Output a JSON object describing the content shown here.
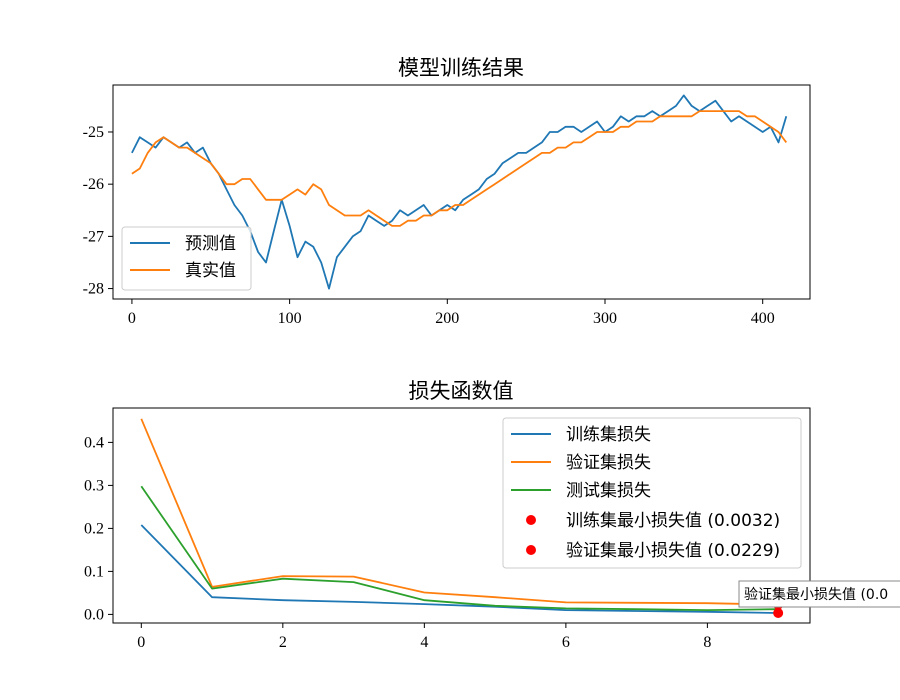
{
  "chart_data": [
    {
      "type": "line",
      "title": "模型训练结果",
      "xlabel": "",
      "ylabel": "",
      "xlim": [
        -12,
        430
      ],
      "ylim": [
        -28.2,
        -24.1
      ],
      "xticks": [
        0,
        100,
        200,
        300,
        400
      ],
      "yticks": [
        -25,
        -26,
        -27,
        -28
      ],
      "legend_position": "lower-left",
      "series": [
        {
          "name": "预测值",
          "color": "#1f77b4",
          "x": [
            0,
            5,
            10,
            15,
            20,
            25,
            30,
            35,
            40,
            45,
            50,
            55,
            60,
            65,
            70,
            75,
            80,
            85,
            90,
            95,
            100,
            105,
            110,
            115,
            120,
            125,
            130,
            135,
            140,
            145,
            150,
            155,
            160,
            165,
            170,
            175,
            180,
            185,
            190,
            195,
            200,
            205,
            210,
            215,
            220,
            225,
            230,
            235,
            240,
            245,
            250,
            255,
            260,
            265,
            270,
            275,
            280,
            285,
            290,
            295,
            300,
            305,
            310,
            315,
            320,
            325,
            330,
            335,
            340,
            345,
            350,
            355,
            360,
            365,
            370,
            375,
            380,
            385,
            390,
            395,
            400,
            405,
            410,
            415
          ],
          "values": [
            -25.4,
            -25.1,
            -25.2,
            -25.3,
            -25.1,
            -25.2,
            -25.3,
            -25.2,
            -25.4,
            -25.3,
            -25.6,
            -25.8,
            -26.1,
            -26.4,
            -26.6,
            -26.9,
            -27.3,
            -27.5,
            -26.9,
            -26.3,
            -26.8,
            -27.4,
            -27.1,
            -27.2,
            -27.5,
            -28.0,
            -27.4,
            -27.2,
            -27.0,
            -26.9,
            -26.6,
            -26.7,
            -26.8,
            -26.7,
            -26.5,
            -26.6,
            -26.5,
            -26.4,
            -26.6,
            -26.5,
            -26.4,
            -26.5,
            -26.3,
            -26.2,
            -26.1,
            -25.9,
            -25.8,
            -25.6,
            -25.5,
            -25.4,
            -25.4,
            -25.3,
            -25.2,
            -25.0,
            -25.0,
            -24.9,
            -24.9,
            -25.0,
            -24.9,
            -24.8,
            -25.0,
            -24.9,
            -24.7,
            -24.8,
            -24.7,
            -24.7,
            -24.6,
            -24.7,
            -24.6,
            -24.5,
            -24.3,
            -24.5,
            -24.6,
            -24.5,
            -24.4,
            -24.6,
            -24.8,
            -24.7,
            -24.8,
            -24.9,
            -25.0,
            -24.9,
            -25.2,
            -24.7
          ]
        },
        {
          "name": "真实值",
          "color": "#ff7f0e",
          "x": [
            0,
            5,
            10,
            15,
            20,
            25,
            30,
            35,
            40,
            45,
            50,
            55,
            60,
            65,
            70,
            75,
            80,
            85,
            90,
            95,
            100,
            105,
            110,
            115,
            120,
            125,
            130,
            135,
            140,
            145,
            150,
            155,
            160,
            165,
            170,
            175,
            180,
            185,
            190,
            195,
            200,
            205,
            210,
            215,
            220,
            225,
            230,
            235,
            240,
            245,
            250,
            255,
            260,
            265,
            270,
            275,
            280,
            285,
            290,
            295,
            300,
            305,
            310,
            315,
            320,
            325,
            330,
            335,
            340,
            345,
            350,
            355,
            360,
            365,
            370,
            375,
            380,
            385,
            390,
            395,
            400,
            405,
            410,
            415
          ],
          "values": [
            -25.8,
            -25.7,
            -25.4,
            -25.2,
            -25.1,
            -25.2,
            -25.3,
            -25.3,
            -25.4,
            -25.5,
            -25.6,
            -25.8,
            -26.0,
            -26.0,
            -25.9,
            -25.9,
            -26.1,
            -26.3,
            -26.3,
            -26.3,
            -26.2,
            -26.1,
            -26.2,
            -26.0,
            -26.1,
            -26.4,
            -26.5,
            -26.6,
            -26.6,
            -26.6,
            -26.5,
            -26.6,
            -26.7,
            -26.8,
            -26.8,
            -26.7,
            -26.7,
            -26.6,
            -26.6,
            -26.5,
            -26.5,
            -26.4,
            -26.4,
            -26.3,
            -26.2,
            -26.1,
            -26.0,
            -25.9,
            -25.8,
            -25.7,
            -25.6,
            -25.5,
            -25.4,
            -25.4,
            -25.3,
            -25.3,
            -25.2,
            -25.2,
            -25.1,
            -25.0,
            -25.0,
            -25.0,
            -24.9,
            -24.9,
            -24.8,
            -24.8,
            -24.8,
            -24.7,
            -24.7,
            -24.7,
            -24.7,
            -24.7,
            -24.6,
            -24.6,
            -24.6,
            -24.6,
            -24.6,
            -24.6,
            -24.7,
            -24.7,
            -24.8,
            -24.9,
            -25.0,
            -25.2
          ]
        }
      ]
    },
    {
      "type": "line",
      "title": "损失函数值",
      "xlabel": "",
      "ylabel": "",
      "xlim": [
        -0.4,
        9.45
      ],
      "ylim": [
        -0.02,
        0.48
      ],
      "xticks": [
        0,
        2,
        4,
        6,
        8
      ],
      "yticks": [
        0.0,
        0.1,
        0.2,
        0.3,
        0.4
      ],
      "legend_position": "upper-right",
      "x": [
        0,
        1,
        2,
        3,
        4,
        5,
        6,
        7,
        8,
        9
      ],
      "series": [
        {
          "name": "训练集损失",
          "color": "#1f77b4",
          "values": [
            0.208,
            0.04,
            0.033,
            0.029,
            0.024,
            0.018,
            0.01,
            0.008,
            0.006,
            0.0032
          ]
        },
        {
          "name": "验证集损失",
          "color": "#ff7f0e",
          "values": [
            0.455,
            0.064,
            0.089,
            0.088,
            0.051,
            0.04,
            0.028,
            0.027,
            0.026,
            0.0229
          ]
        },
        {
          "name": "测试集损失",
          "color": "#2ca02c",
          "values": [
            0.298,
            0.06,
            0.083,
            0.075,
            0.033,
            0.02,
            0.014,
            0.012,
            0.01,
            0.012
          ]
        }
      ],
      "markers": [
        {
          "name": "训练集最小损失值 (0.0032)",
          "color": "#ff0000",
          "x": 9,
          "y": 0.0032
        },
        {
          "name": "验证集最小损失值 (0.0229)",
          "color": "#ff0000",
          "x": 9,
          "y": 0.0229
        }
      ],
      "annotation": {
        "text": "验证集最小损失值 (0.0",
        "x": 9,
        "y": 0.0229
      }
    }
  ]
}
